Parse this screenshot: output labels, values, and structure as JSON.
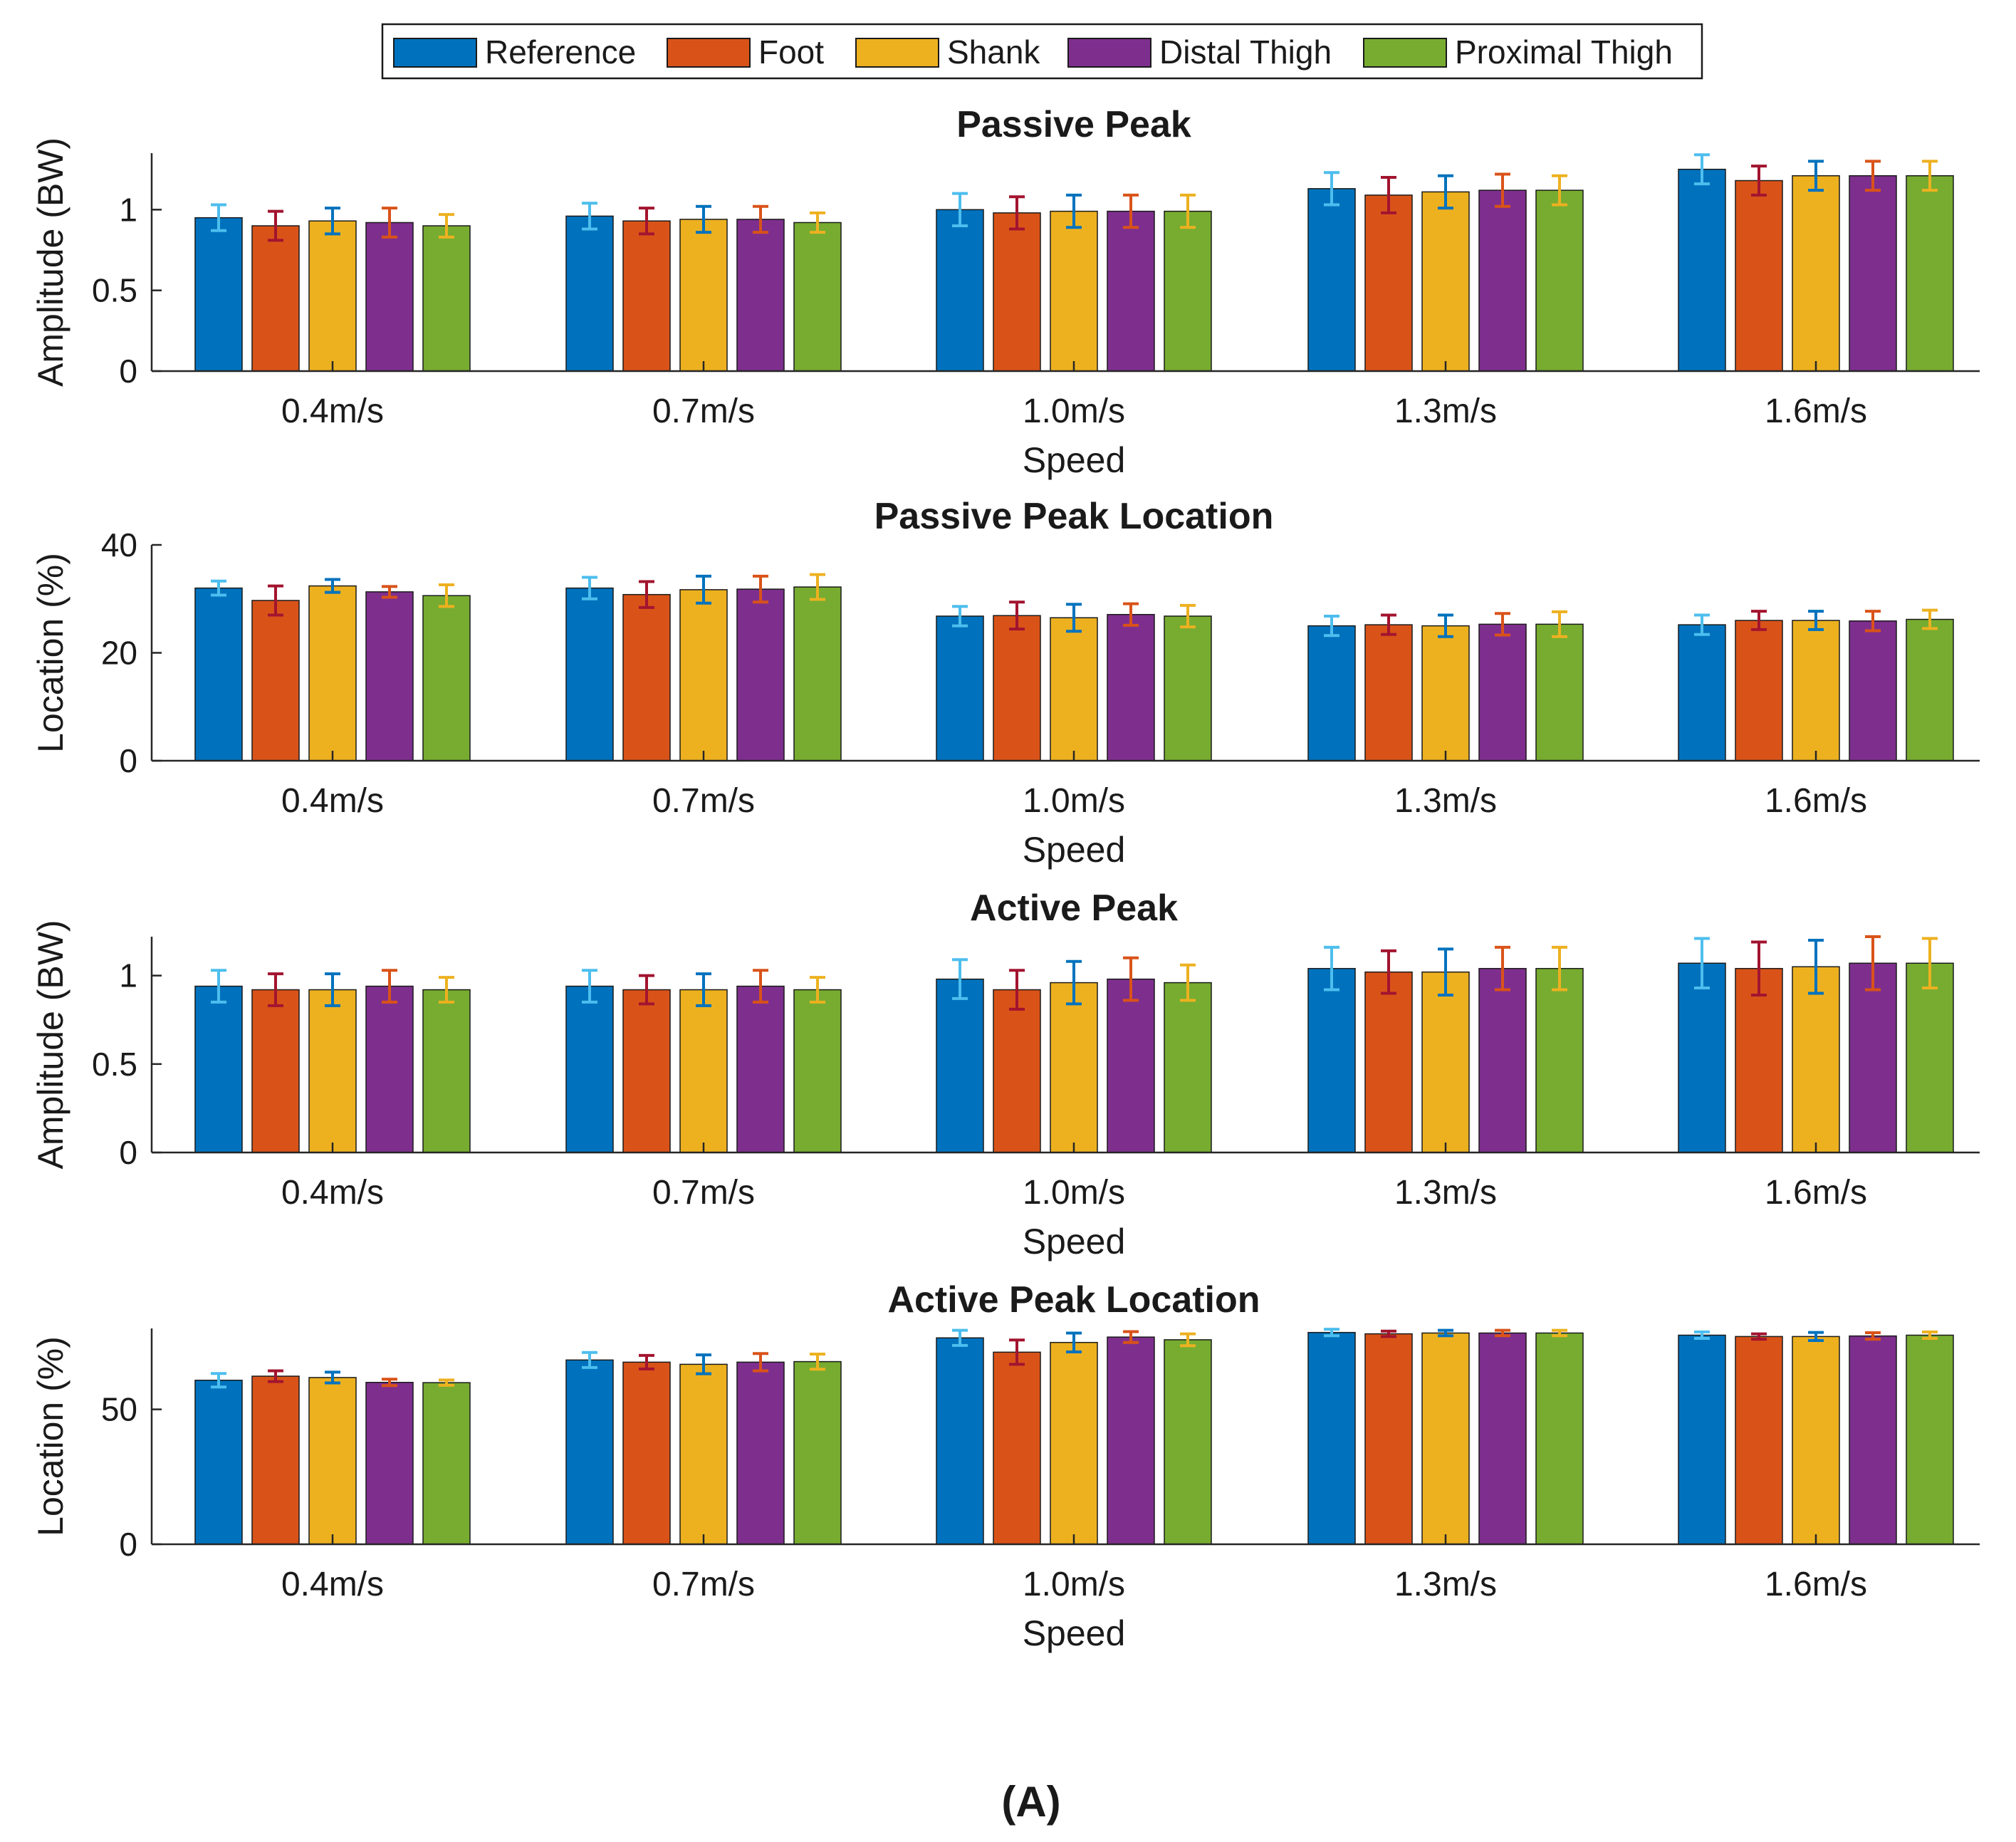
{
  "figure_label": "(A)",
  "legend": [
    {
      "name": "Reference",
      "color": "#0072BD"
    },
    {
      "name": "Foot",
      "color": "#D95319"
    },
    {
      "name": "Shank",
      "color": "#EDB120"
    },
    {
      "name": "Distal Thigh",
      "color": "#7E2F8E"
    },
    {
      "name": "Proximal Thigh",
      "color": "#77AC30"
    }
  ],
  "chart_data": [
    {
      "type": "bar",
      "title": "Passive Peak",
      "xlabel": "Speed",
      "ylabel": "Amplitude (BW)",
      "ylim": [
        0,
        1.35
      ],
      "yticks": [
        0,
        0.5,
        1
      ],
      "ytick_labels": [
        "0",
        "0.5",
        "1"
      ],
      "categories": [
        "0.4m/s",
        "0.7m/s",
        "1.0m/s",
        "1.3m/s",
        "1.6m/s"
      ],
      "series": [
        {
          "name": "Reference",
          "values": [
            0.95,
            0.96,
            1.0,
            1.13,
            1.25
          ],
          "errors": [
            0.08,
            0.08,
            0.1,
            0.1,
            0.09
          ]
        },
        {
          "name": "Foot",
          "values": [
            0.9,
            0.93,
            0.98,
            1.09,
            1.18
          ],
          "errors": [
            0.09,
            0.08,
            0.1,
            0.11,
            0.09
          ]
        },
        {
          "name": "Shank",
          "values": [
            0.93,
            0.94,
            0.99,
            1.11,
            1.21
          ],
          "errors": [
            0.08,
            0.08,
            0.1,
            0.1,
            0.09
          ]
        },
        {
          "name": "Distal Thigh",
          "values": [
            0.92,
            0.94,
            0.99,
            1.12,
            1.21
          ],
          "errors": [
            0.09,
            0.08,
            0.1,
            0.1,
            0.09
          ]
        },
        {
          "name": "Proximal Thigh",
          "values": [
            0.9,
            0.92,
            0.99,
            1.12,
            1.21
          ],
          "errors": [
            0.07,
            0.06,
            0.1,
            0.09,
            0.09
          ]
        }
      ]
    },
    {
      "type": "bar",
      "title": "Passive Peak Location",
      "xlabel": "Speed",
      "ylabel": "Location (%)",
      "ylim": [
        0,
        40
      ],
      "yticks": [
        0,
        20,
        40
      ],
      "ytick_labels": [
        "0",
        "20",
        "40"
      ],
      "categories": [
        "0.4m/s",
        "0.7m/s",
        "1.0m/s",
        "1.3m/s",
        "1.6m/s"
      ],
      "series": [
        {
          "name": "Reference",
          "values": [
            32.0,
            32.0,
            26.8,
            25.0,
            25.2
          ],
          "errors": [
            1.3,
            2.0,
            1.8,
            1.8,
            1.8
          ]
        },
        {
          "name": "Foot",
          "values": [
            29.7,
            30.8,
            26.9,
            25.2,
            26.0
          ],
          "errors": [
            2.7,
            2.4,
            2.5,
            1.8,
            1.7
          ]
        },
        {
          "name": "Shank",
          "values": [
            32.4,
            31.7,
            26.5,
            25.0,
            26.0
          ],
          "errors": [
            1.2,
            2.5,
            2.5,
            2.0,
            1.7
          ]
        },
        {
          "name": "Distal Thigh",
          "values": [
            31.3,
            31.8,
            27.1,
            25.3,
            25.9
          ],
          "errors": [
            1.0,
            2.4,
            2.0,
            2.0,
            1.8
          ]
        },
        {
          "name": "Proximal Thigh",
          "values": [
            30.6,
            32.2,
            26.8,
            25.3,
            26.2
          ],
          "errors": [
            2.0,
            2.3,
            2.0,
            2.3,
            1.7
          ]
        }
      ]
    },
    {
      "type": "bar",
      "title": "Active Peak",
      "xlabel": "Speed",
      "ylabel": "Amplitude (BW)",
      "ylim": [
        0,
        1.22
      ],
      "yticks": [
        0,
        0.5,
        1
      ],
      "ytick_labels": [
        "0",
        "0.5",
        "1"
      ],
      "categories": [
        "0.4m/s",
        "0.7m/s",
        "1.0m/s",
        "1.3m/s",
        "1.6m/s"
      ],
      "series": [
        {
          "name": "Reference",
          "values": [
            0.94,
            0.94,
            0.98,
            1.04,
            1.07
          ],
          "errors": [
            0.09,
            0.09,
            0.11,
            0.12,
            0.14
          ]
        },
        {
          "name": "Foot",
          "values": [
            0.92,
            0.92,
            0.92,
            1.02,
            1.04
          ],
          "errors": [
            0.09,
            0.08,
            0.11,
            0.12,
            0.15
          ]
        },
        {
          "name": "Shank",
          "values": [
            0.92,
            0.92,
            0.96,
            1.02,
            1.05
          ],
          "errors": [
            0.09,
            0.09,
            0.12,
            0.13,
            0.15
          ]
        },
        {
          "name": "Distal Thigh",
          "values": [
            0.94,
            0.94,
            0.98,
            1.04,
            1.07
          ],
          "errors": [
            0.09,
            0.09,
            0.12,
            0.12,
            0.15
          ]
        },
        {
          "name": "Proximal Thigh",
          "values": [
            0.92,
            0.92,
            0.96,
            1.04,
            1.07
          ],
          "errors": [
            0.07,
            0.07,
            0.1,
            0.12,
            0.14
          ]
        }
      ]
    },
    {
      "type": "bar",
      "title": "Active Peak Location",
      "xlabel": "Speed",
      "ylabel": "Location (%)",
      "ylim": [
        0,
        80
      ],
      "yticks": [
        0,
        50
      ],
      "ytick_labels": [
        "0",
        "50"
      ],
      "categories": [
        "0.4m/s",
        "0.7m/s",
        "1.0m/s",
        "1.3m/s",
        "1.6m/s"
      ],
      "series": [
        {
          "name": "Reference",
          "values": [
            60.8,
            68.3,
            76.5,
            78.5,
            77.5
          ],
          "errors": [
            2.5,
            2.8,
            2.8,
            1.2,
            1.2
          ]
        },
        {
          "name": "Foot",
          "values": [
            62.3,
            67.5,
            71.2,
            78.0,
            77.0
          ],
          "errors": [
            2.0,
            2.5,
            4.5,
            1.0,
            1.0
          ]
        },
        {
          "name": "Shank",
          "values": [
            61.8,
            66.7,
            74.8,
            78.3,
            77.0
          ],
          "errors": [
            2.0,
            3.5,
            3.5,
            1.0,
            1.5
          ]
        },
        {
          "name": "Distal Thigh",
          "values": [
            60.0,
            67.5,
            76.8,
            78.3,
            77.2
          ],
          "errors": [
            1.2,
            3.2,
            2.0,
            1.0,
            1.2
          ]
        },
        {
          "name": "Proximal Thigh",
          "values": [
            59.9,
            67.7,
            75.8,
            78.3,
            77.5
          ],
          "errors": [
            1.0,
            2.8,
            2.2,
            1.0,
            1.2
          ]
        }
      ]
    }
  ]
}
